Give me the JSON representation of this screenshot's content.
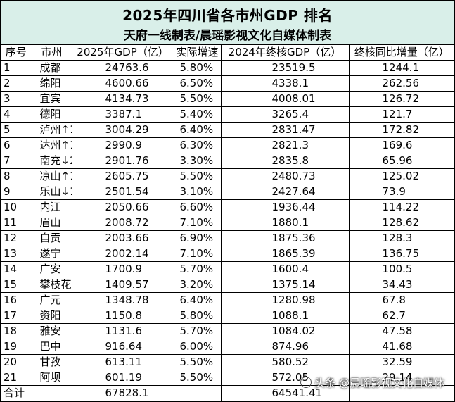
{
  "title": "2025年四川省各市州GDP 排名",
  "subtitle": "天府一线制表/晨瑶影视文化自媒体制表",
  "headers": [
    "序号",
    "市州",
    "2025年GDP（亿）",
    "实际增速",
    "2024年终核GDP（亿）",
    "终核同比增量（亿）"
  ],
  "rows": [
    [
      "1",
      "成都",
      "24763.6",
      "5.80%",
      "23519.5",
      "1244.1"
    ],
    [
      "2",
      "绵阳",
      "4600.66",
      "6.50%",
      "4338.1",
      "262.56"
    ],
    [
      "3",
      "宜宾",
      "4134.73",
      "5.50%",
      "4008.01",
      "126.72"
    ],
    [
      "4",
      "德阳",
      "3387.1",
      "5.40%",
      "3265.4",
      "121.7"
    ],
    [
      "5",
      "泸州↑1",
      "3004.29",
      "6.40%",
      "2831.47",
      "172.82"
    ],
    [
      "6",
      "达州↑1",
      "2990.9",
      "6.30%",
      "2821.3",
      "169.6"
    ],
    [
      "7",
      "南充↓2",
      "2901.76",
      "3.30%",
      "2835.8",
      "65.96"
    ],
    [
      "8",
      "凉山↑1",
      "2605.75",
      "5.50%",
      "2480.73",
      "125.02"
    ],
    [
      "9",
      "乐山↓1",
      "2501.54",
      "3.10%",
      "2427.64",
      "73.9"
    ],
    [
      "10",
      "内江",
      "2050.66",
      "6.60%",
      "1936.44",
      "114.22"
    ],
    [
      "11",
      "眉山",
      "2008.72",
      "7.10%",
      "1880.1",
      "128.62"
    ],
    [
      "12",
      "自贡",
      "2003.66",
      "6.90%",
      "1875.36",
      "128.3"
    ],
    [
      "13",
      "遂宁",
      "2002.14",
      "7.10%",
      "1865.39",
      "136.75"
    ],
    [
      "14",
      "广安",
      "1700.9",
      "5.70%",
      "1600.4",
      "100.5"
    ],
    [
      "15",
      "攀枝花",
      "1409.57",
      "3.20%",
      "1375.14",
      "34.43"
    ],
    [
      "16",
      "广元",
      "1348.78",
      "6.40%",
      "1280.98",
      "67.8"
    ],
    [
      "17",
      "资阳",
      "1150.8",
      "5.80%",
      "1088.1",
      "62.7"
    ],
    [
      "18",
      "雅安",
      "1131.6",
      "5.70%",
      "1084.02",
      "47.58"
    ],
    [
      "19",
      "巴中",
      "916.64",
      "6.00%",
      "874.96",
      "41.68"
    ],
    [
      "20",
      "甘孜",
      "613.11",
      "5.50%",
      "580.52",
      "32.59"
    ],
    [
      "21",
      "阿坝",
      "601.19",
      "5.50%",
      "572.05",
      "29.14"
    ]
  ],
  "total": {
    "label": "合计",
    "gdp2025": "67828.1",
    "gdp2024": "64541.41"
  },
  "watermark": "头条 @晨瑶影视文化自媒体"
}
